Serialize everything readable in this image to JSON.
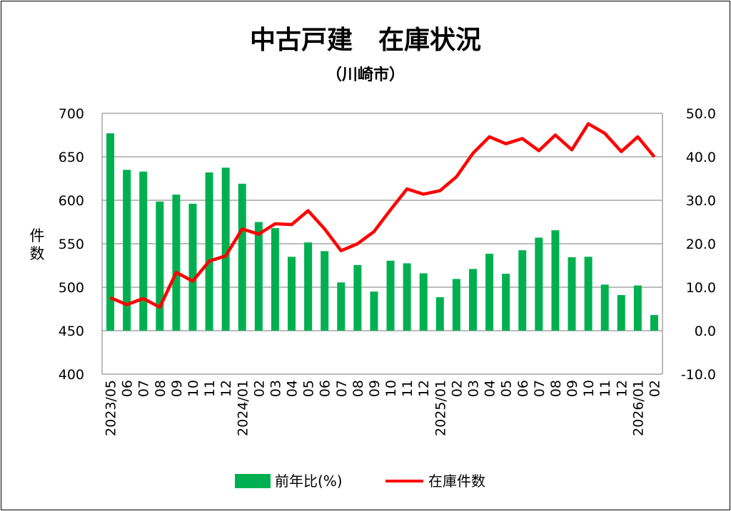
{
  "chart_data": {
    "type": "bar+line",
    "title": "中古戸建　在庫状況",
    "subtitle": "（川崎市）",
    "ylabel": "件数",
    "ylabel_right": "",
    "ylim": [
      400,
      700
    ],
    "yticks": [
      "700",
      "650",
      "600",
      "550",
      "500",
      "450",
      "400"
    ],
    "ylim_right": [
      -10,
      50
    ],
    "yticks_right": [
      "50.0",
      "40.0",
      "30.0",
      "20.0",
      "10.0",
      "0.0",
      "-10.0"
    ],
    "grid": true,
    "legend_position": "bottom",
    "categories": [
      "2023/05",
      "06",
      "07",
      "08",
      "09",
      "10",
      "11",
      "12",
      "2024/01",
      "02",
      "03",
      "04",
      "05",
      "06",
      "07",
      "08",
      "09",
      "10",
      "11",
      "12",
      "2025/01",
      "02",
      "03",
      "04",
      "05",
      "06",
      "07",
      "08",
      "09",
      "10",
      "11",
      "12",
      "2026/01",
      "02"
    ],
    "series": [
      {
        "name": "前年比(%)",
        "type": "bar",
        "axis": "right",
        "color": "#00b050",
        "values": [
          45.4,
          37.0,
          36.6,
          29.7,
          31.3,
          29.2,
          36.4,
          37.5,
          33.8,
          25.0,
          23.6,
          17.0,
          20.3,
          18.3,
          11.1,
          15.1,
          9.0,
          16.1,
          15.5,
          13.2,
          7.7,
          11.9,
          14.2,
          17.7,
          13.1,
          18.5,
          21.4,
          23.1,
          16.9,
          17.0,
          10.6,
          8.2,
          10.4,
          3.6
        ]
      },
      {
        "name": "在庫件数",
        "type": "line",
        "axis": "left",
        "color": "#ff0000",
        "values": [
          488,
          480,
          487,
          477,
          517,
          507,
          530,
          536,
          567,
          561,
          573,
          572,
          588,
          567,
          542,
          550,
          564,
          589,
          613,
          607,
          611,
          627,
          654,
          673,
          665,
          671,
          657,
          675,
          658,
          688,
          677,
          656,
          673,
          650
        ]
      }
    ]
  }
}
